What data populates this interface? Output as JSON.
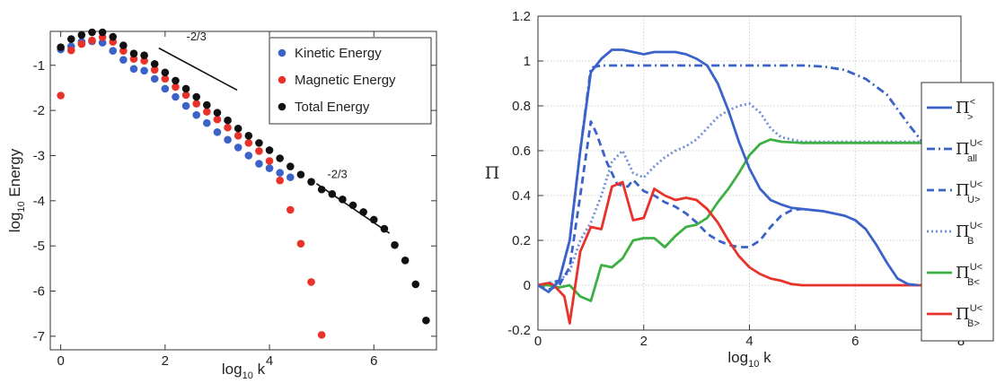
{
  "chart_data": [
    {
      "type": "scatter",
      "xlabel": {
        "base": "log",
        "sub": "10",
        "rest": " k"
      },
      "ylabel": {
        "base": "log",
        "sub": "10",
        "rest": " Energy"
      },
      "xlim": [
        -0.2,
        7.2
      ],
      "ylim": [
        -7.3,
        -0.25
      ],
      "xticks": [
        0,
        2,
        4,
        6
      ],
      "yticks": [
        -1,
        -2,
        -3,
        -4,
        -5,
        -6,
        -7
      ],
      "legend_position": "top-right",
      "series": [
        {
          "name": "Kinetic Energy",
          "color": "#3a62c8",
          "x": [
            0,
            0.2,
            0.4,
            0.6,
            0.8,
            1.0,
            1.2,
            1.4,
            1.6,
            1.8,
            2.0,
            2.2,
            2.4,
            2.6,
            2.8,
            3.0,
            3.2,
            3.4,
            3.6,
            3.8,
            4.0,
            4.2,
            4.4
          ],
          "y": [
            -0.65,
            -0.58,
            -0.48,
            -0.47,
            -0.5,
            -0.68,
            -0.88,
            -1.08,
            -1.12,
            -1.3,
            -1.52,
            -1.7,
            -1.9,
            -2.1,
            -2.28,
            -2.48,
            -2.65,
            -2.82,
            -3.0,
            -3.18,
            -3.28,
            -3.38,
            -3.48
          ]
        },
        {
          "name": "Magnetic Energy",
          "color": "#e8322a",
          "x": [
            0,
            0.2,
            0.4,
            0.6,
            0.8,
            1.0,
            1.2,
            1.4,
            1.6,
            1.8,
            2.0,
            2.2,
            2.4,
            2.6,
            2.8,
            3.0,
            3.2,
            3.4,
            3.6,
            3.8,
            4.0,
            4.2,
            4.4,
            4.6,
            4.8,
            5.0
          ],
          "y": [
            -1.67,
            -0.67,
            -0.53,
            -0.45,
            -0.38,
            -0.48,
            -0.68,
            -0.86,
            -0.9,
            -1.1,
            -1.3,
            -1.48,
            -1.66,
            -1.85,
            -2.03,
            -2.2,
            -2.38,
            -2.56,
            -2.72,
            -2.9,
            -3.12,
            -3.55,
            -4.2,
            -4.95,
            -5.8,
            -6.97
          ]
        },
        {
          "name": "Total Energy",
          "color": "#111111",
          "x": [
            0,
            0.2,
            0.4,
            0.6,
            0.8,
            1.0,
            1.2,
            1.4,
            1.6,
            1.8,
            2.0,
            2.2,
            2.4,
            2.6,
            2.8,
            3.0,
            3.2,
            3.4,
            3.6,
            3.8,
            4.0,
            4.2,
            4.4,
            4.6,
            4.8,
            5.0,
            5.2,
            5.4,
            5.6,
            5.8,
            6.0,
            6.2,
            6.4,
            6.6,
            6.8,
            7.0
          ],
          "y": [
            -0.6,
            -0.42,
            -0.33,
            -0.27,
            -0.27,
            -0.37,
            -0.56,
            -0.74,
            -0.78,
            -0.97,
            -1.16,
            -1.34,
            -1.52,
            -1.7,
            -1.88,
            -2.05,
            -2.22,
            -2.4,
            -2.56,
            -2.72,
            -2.88,
            -3.06,
            -3.24,
            -3.42,
            -3.58,
            -3.75,
            -3.85,
            -3.97,
            -4.1,
            -4.25,
            -4.42,
            -4.62,
            -4.98,
            -5.32,
            -5.85,
            -6.65
          ]
        }
      ],
      "annotations": [
        {
          "text": "-2/3",
          "line": [
            [
              1.88,
              -0.62
            ],
            [
              3.38,
              -1.55
            ]
          ],
          "label_at": [
            2.6,
            -0.45
          ]
        },
        {
          "text": "-2/3",
          "line": [
            [
              4.9,
              -3.62
            ],
            [
              6.3,
              -4.72
            ]
          ],
          "label_at": [
            5.3,
            -3.5
          ]
        }
      ]
    },
    {
      "type": "line",
      "xlabel": {
        "base": "log",
        "sub": "10",
        "rest": " k"
      },
      "ylabel": "Π",
      "xlim": [
        0,
        8
      ],
      "ylim": [
        -0.2,
        1.2
      ],
      "xticks": [
        0,
        2,
        4,
        6,
        8
      ],
      "yticks": [
        -0.2,
        0,
        0.2,
        0.4,
        0.6,
        0.8,
        1,
        1.2
      ],
      "ytick_labels": [
        "-0.2",
        "0",
        "0.2",
        "0.4",
        "0.6",
        "0.8",
        "1",
        "1.2"
      ],
      "grid": true,
      "legend_position": "right",
      "series": [
        {
          "legend": {
            "base": "Π",
            "sup": "<",
            "sub": ">"
          },
          "color": "#3a62c8",
          "style": "solid",
          "x": [
            0,
            0.2,
            0.4,
            0.6,
            0.8,
            1.0,
            1.2,
            1.4,
            1.6,
            1.8,
            2.0,
            2.2,
            2.4,
            2.6,
            2.8,
            3.0,
            3.2,
            3.4,
            3.6,
            3.8,
            4.0,
            4.2,
            4.4,
            4.6,
            4.8,
            5.0,
            5.2,
            5.4,
            5.6,
            5.8,
            6.0,
            6.2,
            6.4,
            6.6,
            6.8,
            7.0,
            7.2
          ],
          "y": [
            0,
            -0.03,
            0.02,
            0.2,
            0.6,
            0.95,
            1.01,
            1.05,
            1.05,
            1.04,
            1.03,
            1.04,
            1.04,
            1.04,
            1.03,
            1.01,
            0.98,
            0.9,
            0.78,
            0.64,
            0.52,
            0.43,
            0.38,
            0.36,
            0.345,
            0.34,
            0.335,
            0.33,
            0.32,
            0.31,
            0.29,
            0.25,
            0.18,
            0.1,
            0.03,
            0.005,
            0
          ]
        },
        {
          "legend": {
            "base": "Π",
            "sup": "U<",
            "sub": "all"
          },
          "color": "#3a62c8",
          "style": "dashdot",
          "x": [
            0,
            0.2,
            0.4,
            0.6,
            0.8,
            1.0,
            1.2,
            1.4,
            2.0,
            3.0,
            4.0,
            5.0,
            5.4,
            5.8,
            6.2,
            6.6,
            7.0,
            7.3
          ],
          "y": [
            0,
            0.01,
            0.02,
            0.2,
            0.6,
            0.97,
            0.98,
            0.98,
            0.98,
            0.98,
            0.98,
            0.98,
            0.975,
            0.96,
            0.92,
            0.85,
            0.72,
            0.63
          ]
        },
        {
          "legend": {
            "base": "Π",
            "sup": "U<",
            "sub": "U>"
          },
          "color": "#3a62c8",
          "style": "dashed",
          "x": [
            0,
            0.2,
            0.4,
            0.6,
            0.8,
            1.0,
            1.1,
            1.3,
            1.5,
            1.7,
            1.8,
            2.0,
            2.2,
            2.4,
            2.6,
            2.8,
            3.0,
            3.2,
            3.4,
            3.6,
            3.8,
            4.0,
            4.2,
            4.4,
            4.6,
            4.8,
            5.0
          ],
          "y": [
            0,
            -0.02,
            0.0,
            0.08,
            0.4,
            0.73,
            0.68,
            0.55,
            0.45,
            0.44,
            0.47,
            0.42,
            0.4,
            0.37,
            0.35,
            0.32,
            0.28,
            0.23,
            0.2,
            0.18,
            0.17,
            0.17,
            0.2,
            0.26,
            0.31,
            0.335,
            0.34
          ]
        },
        {
          "legend": {
            "base": "Π",
            "sup": "U<",
            "sub": "B"
          },
          "color": "#6f8fd6",
          "style": "dotted",
          "x": [
            0,
            0.2,
            0.4,
            0.6,
            0.8,
            1.0,
            1.2,
            1.4,
            1.6,
            1.8,
            2.0,
            2.2,
            2.4,
            2.6,
            2.8,
            3.0,
            3.2,
            3.4,
            3.6,
            3.8,
            4.0,
            4.2,
            4.4,
            4.6,
            5.0,
            6.0,
            7.3
          ],
          "y": [
            0,
            0.0,
            0.02,
            0.06,
            0.2,
            0.28,
            0.4,
            0.55,
            0.6,
            0.5,
            0.48,
            0.53,
            0.57,
            0.6,
            0.62,
            0.65,
            0.7,
            0.75,
            0.78,
            0.8,
            0.81,
            0.77,
            0.7,
            0.66,
            0.64,
            0.64,
            0.64
          ]
        },
        {
          "legend": {
            "base": "Π",
            "sup": "U<",
            "sub": "B<"
          },
          "color": "#3cb043",
          "style": "solid",
          "x": [
            0,
            0.2,
            0.4,
            0.6,
            0.8,
            1.0,
            1.2,
            1.4,
            1.6,
            1.8,
            2.0,
            2.2,
            2.4,
            2.6,
            2.8,
            3.0,
            3.2,
            3.4,
            3.6,
            3.8,
            4.0,
            4.2,
            4.4,
            4.6,
            5.0,
            6.0,
            7.3
          ],
          "y": [
            0,
            0.0,
            -0.01,
            0.0,
            -0.05,
            -0.07,
            0.09,
            0.08,
            0.12,
            0.2,
            0.21,
            0.21,
            0.17,
            0.22,
            0.26,
            0.27,
            0.3,
            0.37,
            0.43,
            0.5,
            0.58,
            0.63,
            0.65,
            0.64,
            0.635,
            0.635,
            0.635
          ]
        },
        {
          "legend": {
            "base": "Π",
            "sup": "U<",
            "sub": "B>"
          },
          "color": "#e8322a",
          "style": "solid",
          "x": [
            0,
            0.2,
            0.3,
            0.5,
            0.6,
            0.8,
            1.0,
            1.2,
            1.4,
            1.6,
            1.8,
            2.0,
            2.2,
            2.4,
            2.6,
            2.8,
            3.0,
            3.2,
            3.4,
            3.6,
            3.8,
            4.0,
            4.2,
            4.4,
            4.6,
            4.8,
            5.0,
            6.0,
            7.3
          ],
          "y": [
            0,
            0.01,
            0.0,
            -0.05,
            -0.17,
            0.15,
            0.26,
            0.25,
            0.44,
            0.46,
            0.29,
            0.3,
            0.43,
            0.4,
            0.38,
            0.39,
            0.38,
            0.34,
            0.28,
            0.2,
            0.13,
            0.08,
            0.05,
            0.03,
            0.02,
            0.005,
            0,
            0,
            0
          ]
        }
      ]
    }
  ]
}
